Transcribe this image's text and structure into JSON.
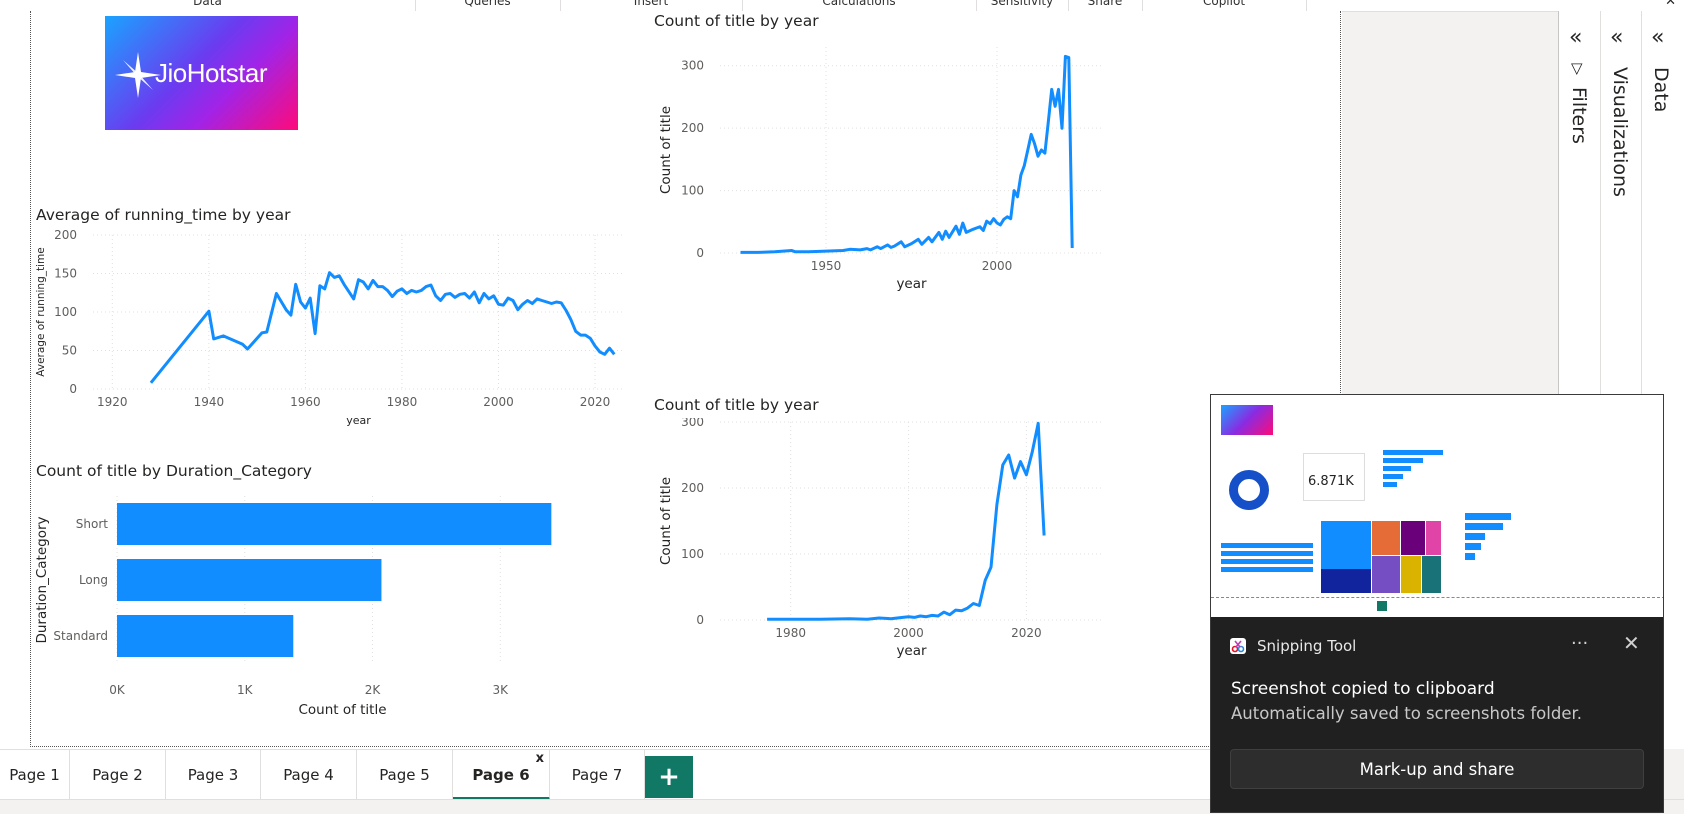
{
  "ribbon": {
    "groups": [
      {
        "label": "Data",
        "left": 0,
        "width": 415
      },
      {
        "label": "Queries",
        "left": 415,
        "width": 145
      },
      {
        "label": "Insert",
        "left": 560,
        "width": 182
      },
      {
        "label": "Calculations",
        "left": 742,
        "width": 234
      },
      {
        "label": "Sensitivity",
        "left": 976,
        "width": 92
      },
      {
        "label": "Share",
        "left": 1068,
        "width": 74
      },
      {
        "label": "Copilot",
        "left": 1142,
        "width": 164
      }
    ],
    "close_glyph": "✕"
  },
  "logo": {
    "text": "JioHotstar"
  },
  "chart_data": [
    {
      "id": "running-time-by-year",
      "type": "line",
      "title": "Average of running_time by year",
      "xlabel": "year",
      "ylabel": "Average of running_time",
      "xlim": [
        1916,
        2026
      ],
      "ylim": [
        0,
        200
      ],
      "xticks": [
        1920,
        1940,
        1960,
        1980,
        2000,
        2020
      ],
      "yticks": [
        0,
        50,
        100,
        150,
        200
      ],
      "grid": true,
      "color": "#118dff",
      "points": [
        [
          1928,
          8
        ],
        [
          1940,
          101
        ],
        [
          1941,
          65
        ],
        [
          1943,
          69
        ],
        [
          1947,
          58
        ],
        [
          1948,
          52
        ],
        [
          1951,
          73
        ],
        [
          1952,
          74
        ],
        [
          1954,
          124
        ],
        [
          1956,
          103
        ],
        [
          1957,
          96
        ],
        [
          1958,
          136
        ],
        [
          1959,
          113
        ],
        [
          1960,
          105
        ],
        [
          1961,
          118
        ],
        [
          1962,
          72
        ],
        [
          1963,
          134
        ],
        [
          1964,
          130
        ],
        [
          1965,
          151
        ],
        [
          1966,
          145
        ],
        [
          1967,
          147
        ],
        [
          1968,
          136
        ],
        [
          1970,
          117
        ],
        [
          1971,
          142
        ],
        [
          1972,
          139
        ],
        [
          1973,
          130
        ],
        [
          1974,
          141
        ],
        [
          1975,
          133
        ],
        [
          1976,
          133
        ],
        [
          1977,
          128
        ],
        [
          1978,
          120
        ],
        [
          1979,
          127
        ],
        [
          1980,
          130
        ],
        [
          1981,
          124
        ],
        [
          1982,
          128
        ],
        [
          1983,
          126
        ],
        [
          1984,
          128
        ],
        [
          1985,
          133
        ],
        [
          1986,
          135
        ],
        [
          1987,
          121
        ],
        [
          1988,
          115
        ],
        [
          1989,
          123
        ],
        [
          1990,
          124
        ],
        [
          1991,
          119
        ],
        [
          1992,
          123
        ],
        [
          1993,
          124
        ],
        [
          1994,
          118
        ],
        [
          1995,
          126
        ],
        [
          1996,
          112
        ],
        [
          1997,
          124
        ],
        [
          1998,
          117
        ],
        [
          1999,
          121
        ],
        [
          2000,
          110
        ],
        [
          2001,
          109
        ],
        [
          2002,
          118
        ],
        [
          2003,
          115
        ],
        [
          2004,
          103
        ],
        [
          2005,
          110
        ],
        [
          2006,
          115
        ],
        [
          2007,
          111
        ],
        [
          2008,
          117
        ],
        [
          2009,
          115
        ],
        [
          2010,
          113
        ],
        [
          2011,
          111
        ],
        [
          2012,
          113
        ],
        [
          2013,
          112
        ],
        [
          2014,
          102
        ],
        [
          2015,
          90
        ],
        [
          2016,
          75
        ],
        [
          2017,
          70
        ],
        [
          2018,
          70
        ],
        [
          2019,
          66
        ],
        [
          2020,
          56
        ],
        [
          2021,
          48
        ],
        [
          2022,
          45
        ],
        [
          2023,
          53
        ],
        [
          2024,
          45
        ]
      ]
    },
    {
      "id": "title-count-by-duration",
      "type": "bar",
      "orientation": "horizontal",
      "title": "Count of title by Duration_Category",
      "xlabel": "Count of title",
      "ylabel": "Duration_Category",
      "xlim": [
        0,
        4000
      ],
      "xticks": [
        0,
        1000,
        2000,
        3000
      ],
      "xtick_labels": [
        "0K",
        "1K",
        "2K",
        "3K"
      ],
      "grid": true,
      "color": "#118dff",
      "categories": [
        "Short",
        "Long",
        "Standard"
      ],
      "values": [
        3400,
        2070,
        1380
      ]
    },
    {
      "id": "title-count-by-year-1",
      "type": "line",
      "title": "Count of title by year",
      "xlabel": "year",
      "ylabel": "Count of title",
      "xlim": [
        1919,
        2031
      ],
      "ylim": [
        0,
        330
      ],
      "xticks": [
        1950,
        2000
      ],
      "yticks": [
        0,
        100,
        200,
        300
      ],
      "grid": true,
      "color": "#118dff",
      "points": [
        [
          1925,
          1
        ],
        [
          1930,
          1
        ],
        [
          1935,
          2
        ],
        [
          1940,
          4
        ],
        [
          1941,
          2
        ],
        [
          1945,
          2
        ],
        [
          1950,
          3
        ],
        [
          1955,
          4
        ],
        [
          1957,
          6
        ],
        [
          1960,
          5
        ],
        [
          1962,
          7
        ],
        [
          1963,
          5
        ],
        [
          1965,
          10
        ],
        [
          1966,
          7
        ],
        [
          1968,
          13
        ],
        [
          1969,
          9
        ],
        [
          1970,
          11
        ],
        [
          1972,
          18
        ],
        [
          1973,
          10
        ],
        [
          1975,
          15
        ],
        [
          1977,
          22
        ],
        [
          1978,
          14
        ],
        [
          1980,
          25
        ],
        [
          1981,
          18
        ],
        [
          1983,
          33
        ],
        [
          1984,
          22
        ],
        [
          1985,
          35
        ],
        [
          1986,
          25
        ],
        [
          1988,
          43
        ],
        [
          1989,
          30
        ],
        [
          1990,
          48
        ],
        [
          1991,
          33
        ],
        [
          1993,
          38
        ],
        [
          1994,
          40
        ],
        [
          1995,
          42
        ],
        [
          1996,
          36
        ],
        [
          1997,
          51
        ],
        [
          1998,
          47
        ],
        [
          1999,
          55
        ],
        [
          2000,
          48
        ],
        [
          2001,
          45
        ],
        [
          2002,
          54
        ],
        [
          2003,
          58
        ],
        [
          2004,
          55
        ],
        [
          2005,
          100
        ],
        [
          2006,
          90
        ],
        [
          2007,
          125
        ],
        [
          2008,
          140
        ],
        [
          2009,
          165
        ],
        [
          2010,
          190
        ],
        [
          2011,
          175
        ],
        [
          2012,
          155
        ],
        [
          2013,
          165
        ],
        [
          2014,
          160
        ],
        [
          2015,
          210
        ],
        [
          2016,
          262
        ],
        [
          2017,
          235
        ],
        [
          2018,
          262
        ],
        [
          2019,
          200
        ],
        [
          2020,
          315
        ],
        [
          2021,
          313
        ],
        [
          2022,
          8
        ]
      ]
    },
    {
      "id": "title-count-by-year-2",
      "type": "line",
      "title": "Count of title by year",
      "xlabel": "year",
      "ylabel": "Count of title",
      "xlim": [
        1968,
        2033
      ],
      "ylim": [
        0,
        300
      ],
      "xticks": [
        1980,
        2000,
        2020
      ],
      "yticks": [
        0,
        100,
        200,
        300
      ],
      "grid": true,
      "color": "#118dff",
      "points": [
        [
          1976,
          1
        ],
        [
          1980,
          1
        ],
        [
          1985,
          1
        ],
        [
          1990,
          2
        ],
        [
          1993,
          1
        ],
        [
          1995,
          3
        ],
        [
          1997,
          2
        ],
        [
          1999,
          4
        ],
        [
          2000,
          5
        ],
        [
          2001,
          4
        ],
        [
          2002,
          6
        ],
        [
          2003,
          5
        ],
        [
          2004,
          7
        ],
        [
          2005,
          6
        ],
        [
          2006,
          12
        ],
        [
          2007,
          8
        ],
        [
          2008,
          15
        ],
        [
          2009,
          14
        ],
        [
          2010,
          18
        ],
        [
          2011,
          25
        ],
        [
          2012,
          22
        ],
        [
          2013,
          60
        ],
        [
          2014,
          80
        ],
        [
          2015,
          175
        ],
        [
          2016,
          235
        ],
        [
          2017,
          250
        ],
        [
          2018,
          215
        ],
        [
          2019,
          240
        ],
        [
          2020,
          220
        ],
        [
          2021,
          255
        ],
        [
          2022,
          298
        ],
        [
          2023,
          128
        ]
      ]
    }
  ],
  "panes": [
    {
      "name": "filters",
      "label": "Filters",
      "chevron": "«",
      "icon": "▽"
    },
    {
      "name": "visualizations",
      "label": "Visualizations",
      "chevron": "«"
    },
    {
      "name": "data",
      "label": "Data",
      "chevron": "«"
    }
  ],
  "tabs": [
    {
      "label": "Page 1",
      "left": 0,
      "width": 70,
      "active": false
    },
    {
      "label": "Page 2",
      "left": 70,
      "width": 96,
      "active": false
    },
    {
      "label": "Page 3",
      "left": 166,
      "width": 95,
      "active": false
    },
    {
      "label": "Page 4",
      "left": 261,
      "width": 96,
      "active": false
    },
    {
      "label": "Page 5",
      "left": 357,
      "width": 96,
      "active": false
    },
    {
      "label": "Page 6",
      "left": 453,
      "width": 97,
      "active": true
    },
    {
      "label": "Page 7",
      "left": 550,
      "width": 95,
      "active": false
    }
  ],
  "tab_close_glyph": "x",
  "add_page_glyph": "+",
  "toast": {
    "app_name": "Snipping Tool",
    "more_glyph": "···",
    "close_glyph": "✕",
    "title": "Screenshot copied to clipboard",
    "subtitle": "Automatically saved to screenshots folder.",
    "button": "Mark-up and share",
    "thumb_card_value": "6.871K"
  }
}
